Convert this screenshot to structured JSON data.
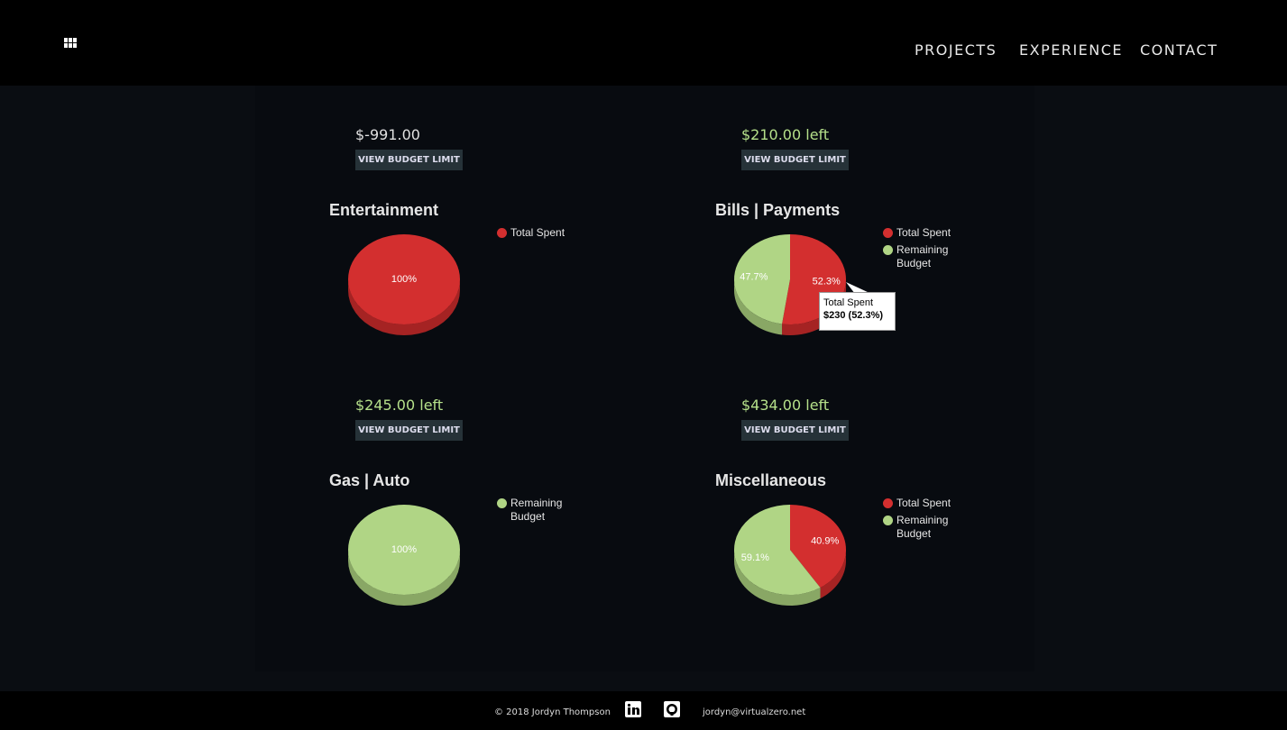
{
  "nav": {
    "links": [
      "PROJECTS",
      "EXPERIENCE",
      "CONTACT"
    ]
  },
  "budgets": [
    {
      "amount": "$-991.00",
      "button": "VIEW BUDGET LIMIT"
    },
    {
      "amount": "$210.00 left",
      "button": "VIEW BUDGET LIMIT"
    },
    {
      "amount": "$245.00 left",
      "button": "VIEW BUDGET LIMIT"
    },
    {
      "amount": "$434.00 left",
      "button": "VIEW BUDGET LIMIT"
    }
  ],
  "chart_data": [
    {
      "type": "pie",
      "title": "Entertainment",
      "categories": [
        "Total Spent"
      ],
      "values": [
        100
      ],
      "value_labels": [
        "100%"
      ],
      "colors": [
        "#d32f2f"
      ]
    },
    {
      "type": "pie",
      "title": "Bills | Payments",
      "categories": [
        "Total Spent",
        "Remaining Budget"
      ],
      "values": [
        52.3,
        47.7
      ],
      "value_labels": [
        "52.3%",
        "47.7%"
      ],
      "colors": [
        "#d32f2f",
        "#b0d585"
      ]
    },
    {
      "type": "pie",
      "title": "Gas | Auto",
      "categories": [
        "Remaining Budget"
      ],
      "values": [
        100
      ],
      "value_labels": [
        "100%"
      ],
      "colors": [
        "#b0d585"
      ]
    },
    {
      "type": "pie",
      "title": "Miscellaneous",
      "categories": [
        "Total Spent",
        "Remaining Budget"
      ],
      "values": [
        40.9,
        59.1
      ],
      "value_labels": [
        "40.9%",
        "59.1%"
      ],
      "colors": [
        "#d32f2f",
        "#b0d585"
      ]
    }
  ],
  "tooltip": {
    "title": "Total Spent",
    "value": "$230 (52.3%)"
  },
  "footer": {
    "copyright": "© 2018 Jordyn Thompson",
    "email": "jordyn@virtualzero.net"
  }
}
